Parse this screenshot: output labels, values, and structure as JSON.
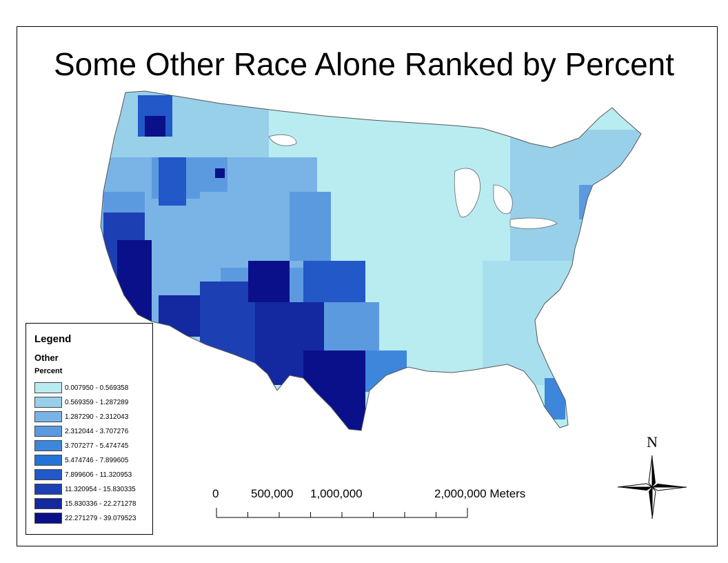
{
  "title": "Some Other Race Alone Ranked by Percent",
  "legend": {
    "heading": "Legend",
    "layer": "Other",
    "field": "Percent",
    "classes": [
      {
        "label": "0.007950 - 0.569358",
        "color": "#b8ecf0"
      },
      {
        "label": "0.569359 - 1.287289",
        "color": "#98d0ea"
      },
      {
        "label": "1.287290 - 2.312043",
        "color": "#7ab4e6"
      },
      {
        "label": "2.312044 - 3.707276",
        "color": "#5c9ae0"
      },
      {
        "label": "3.707277 - 5.474745",
        "color": "#3e86dc"
      },
      {
        "label": "5.474746 - 7.899605",
        "color": "#2474d8"
      },
      {
        "label": "7.899606 - 11.320953",
        "color": "#2258c8"
      },
      {
        "label": "11.320954 - 15.830335",
        "color": "#1c40b4"
      },
      {
        "label": "15.830336 - 22.271278",
        "color": "#1428a0"
      },
      {
        "label": "22.271279 - 39.079523",
        "color": "#0a108a"
      }
    ]
  },
  "scale_bar": {
    "labels": [
      "0",
      "500,000",
      "1,000,000",
      "2,000,000 Meters"
    ],
    "ticks_m": [
      0,
      250000,
      500000,
      750000,
      1000000,
      1250000,
      1500000,
      1750000,
      2000000
    ]
  },
  "north_arrow": {
    "label": "N"
  }
}
